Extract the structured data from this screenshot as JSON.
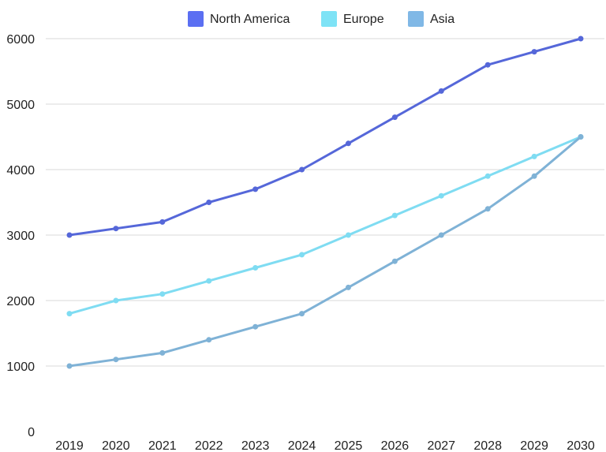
{
  "chart_data": {
    "type": "line",
    "title": "",
    "xlabel": "",
    "ylabel": "",
    "x": [
      "2019",
      "2020",
      "2021",
      "2022",
      "2023",
      "2024",
      "2025",
      "2026",
      "2027",
      "2028",
      "2029",
      "2030"
    ],
    "ylim": [
      0,
      6000
    ],
    "yticks": [
      "0",
      "1000",
      "2000",
      "3000",
      "4000",
      "5000",
      "6000"
    ],
    "grid": true,
    "legend_position": "top-center",
    "series": [
      {
        "name": "North America",
        "color": "#5567d9",
        "legend_color": "#5b6ff2",
        "values": [
          3000,
          3100,
          3200,
          3500,
          3700,
          4000,
          4400,
          4800,
          5200,
          5600,
          5800,
          6000
        ]
      },
      {
        "name": "Europe",
        "color": "#7fdcf2",
        "legend_color": "#7ee3f6",
        "values": [
          1800,
          2000,
          2100,
          2300,
          2500,
          2700,
          3000,
          3300,
          3600,
          3900,
          4200,
          4500
        ]
      },
      {
        "name": "Asia",
        "color": "#7fb2d6",
        "legend_color": "#80b8e6",
        "values": [
          1000,
          1100,
          1200,
          1400,
          1600,
          1800,
          2200,
          2600,
          3000,
          3400,
          3900,
          4500
        ]
      }
    ]
  }
}
